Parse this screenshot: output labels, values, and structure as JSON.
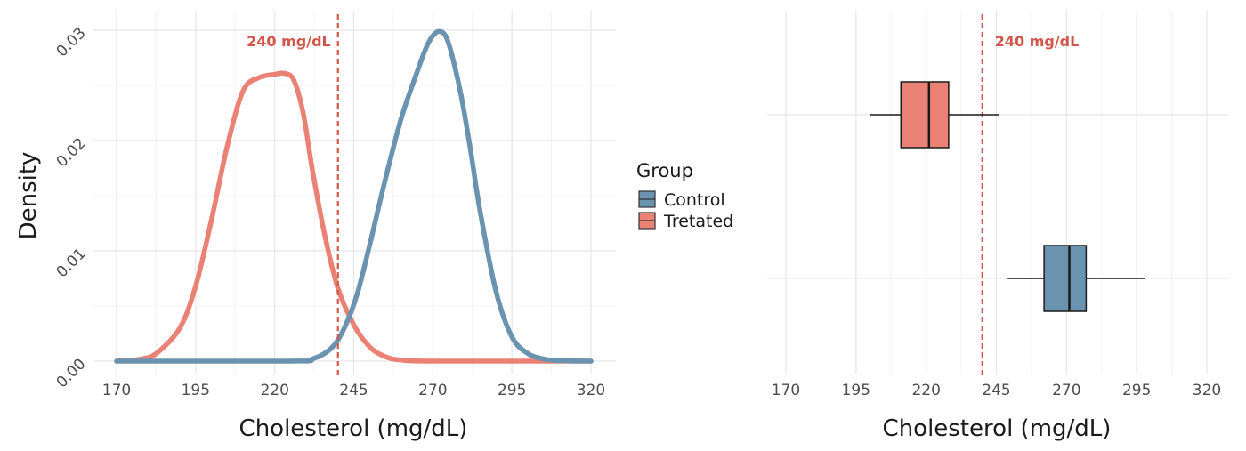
{
  "colors": {
    "control": "#6a93b0",
    "treated": "#e98274",
    "reference": "#d0574a"
  },
  "legend": {
    "title": "Group",
    "items": [
      {
        "label": "Control",
        "color": "#6a93b0"
      },
      {
        "label": "Tretated",
        "color": "#e98274"
      }
    ]
  },
  "chart_data": [
    {
      "type": "line",
      "subtype": "density",
      "xlabel": "Cholesterol (mg/dL)",
      "ylabel": "Density",
      "xlim": [
        170,
        320
      ],
      "ylim": [
        0,
        0.03
      ],
      "xticks": [
        170,
        195,
        220,
        245,
        270,
        295,
        320
      ],
      "yticks": [
        0.0,
        0.01,
        0.02,
        0.03
      ],
      "ytick_labels": [
        "0.00",
        "0.01",
        "0.02",
        "0.03"
      ],
      "grid": true,
      "reference_line": {
        "x": 240,
        "label": "240 mg/dL"
      },
      "series": [
        {
          "name": "Control",
          "x": [
            170,
            225,
            232,
            238,
            242,
            246,
            250,
            255,
            260,
            265,
            268,
            270,
            272,
            274,
            276,
            279,
            282,
            285,
            290,
            295,
            300,
            305,
            310,
            320
          ],
          "y": [
            0,
            0,
            0.0002,
            0.0012,
            0.003,
            0.006,
            0.0105,
            0.0165,
            0.022,
            0.0262,
            0.0285,
            0.0295,
            0.0299,
            0.0295,
            0.0278,
            0.024,
            0.019,
            0.0135,
            0.0063,
            0.0022,
            0.0007,
            0.0002,
            5e-05,
            0
          ]
        },
        {
          "name": "Tretated",
          "x": [
            170,
            178,
            183,
            190,
            195,
            200,
            205,
            210,
            215,
            220,
            223,
            226,
            229,
            232,
            236,
            240,
            245,
            250,
            255,
            260,
            270,
            320
          ],
          "y": [
            0,
            0.0002,
            0.0008,
            0.003,
            0.0068,
            0.0128,
            0.0195,
            0.0245,
            0.0257,
            0.026,
            0.0261,
            0.0255,
            0.0225,
            0.0172,
            0.0112,
            0.0066,
            0.0033,
            0.0013,
            0.0004,
            0.0001,
            0,
            0
          ]
        }
      ]
    },
    {
      "type": "boxplot",
      "xlabel": "Cholesterol (mg/dL)",
      "xlim": [
        170,
        320
      ],
      "xticks": [
        170,
        195,
        220,
        245,
        270,
        295,
        320
      ],
      "grid": true,
      "reference_line": {
        "x": 240,
        "label": "240 mg/dL"
      },
      "series": [
        {
          "name": "Tretated",
          "min": 200,
          "q1": 211,
          "median": 221,
          "q3": 228,
          "max": 246
        },
        {
          "name": "Control",
          "min": 249,
          "q1": 262,
          "median": 271,
          "q3": 277,
          "max": 298
        }
      ]
    }
  ]
}
